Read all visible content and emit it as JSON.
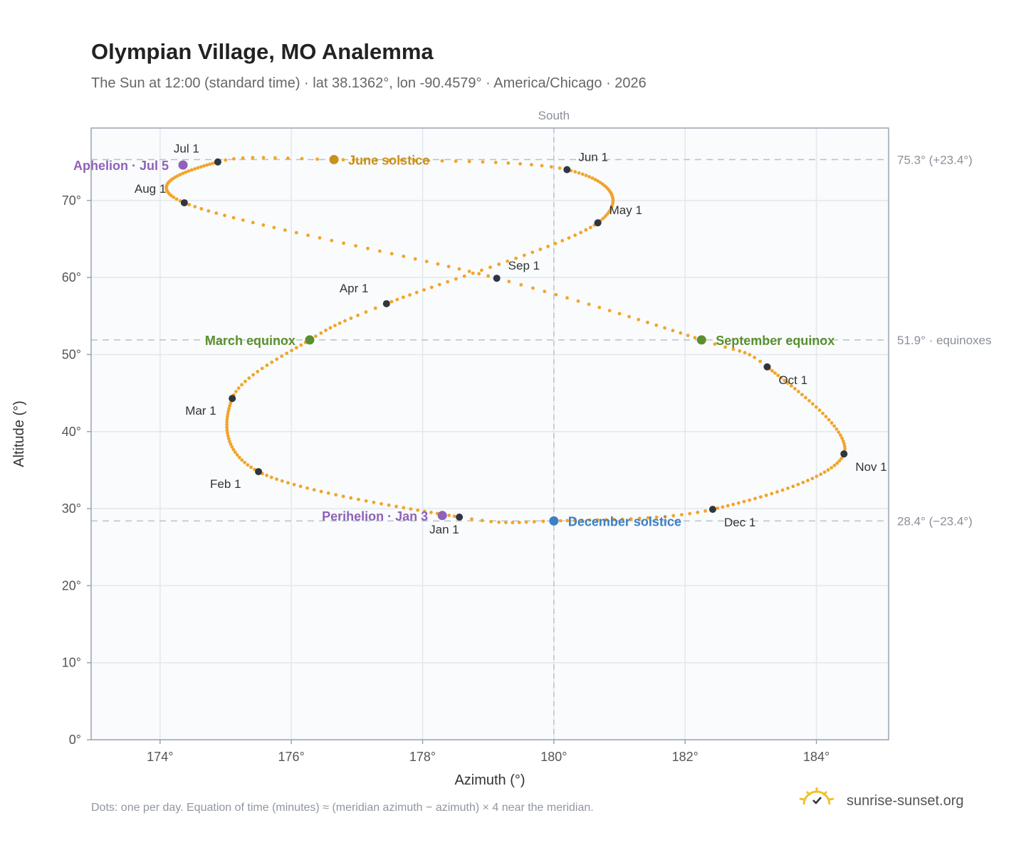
{
  "title": "Olympian Village, MO Analemma",
  "subtitle": "The Sun at 12:00 (standard time) · lat 38.1362°, lon -90.4579° · America/Chicago · 2026",
  "footnote": "Dots: one per day. Equation of time (minutes) ≈ (meridian azimuth − azimuth) × 4 near the meridian.",
  "brand": "sunrise-sunset.org",
  "colors": {
    "path": "#f2a42a",
    "month_marker": "#2f3640",
    "june_solstice": "#c9901a",
    "december_solstice": "#3b7fc4",
    "equinox": "#5b8f2e",
    "apsis": "#8e62b8",
    "reference_line": "#b8c2cc",
    "plot_bg": "#f9fbfc",
    "grid": "#e3e8ed",
    "frame": "#9aa4b0"
  },
  "chart_data": {
    "type": "scatter",
    "xlabel": "Azimuth (°)",
    "ylabel": "Altitude (°)",
    "xlim": [
      172.95,
      185.1
    ],
    "ylim": [
      0,
      79.4
    ],
    "x_ticks": [
      174,
      176,
      178,
      180,
      182,
      184
    ],
    "x_tick_labels": [
      "174°",
      "176°",
      "178°",
      "180°",
      "182°",
      "184°"
    ],
    "y_ticks": [
      0,
      10,
      20,
      30,
      40,
      50,
      60,
      70
    ],
    "y_tick_labels": [
      "0°",
      "10°",
      "20°",
      "30°",
      "40°",
      "50°",
      "60°",
      "70°"
    ],
    "grid": true,
    "meridian": {
      "azimuth": 180,
      "label": "South"
    },
    "reference_lines": [
      {
        "altitude": 75.3,
        "label": "75.3° (+23.4°)"
      },
      {
        "altitude": 51.9,
        "label": "51.9° · equinoxes"
      },
      {
        "altitude": 28.4,
        "label": "28.4° (−23.4°)"
      }
    ],
    "anchor_points": [
      {
        "day": 1,
        "az": 178.56,
        "alt": 28.9
      },
      {
        "day": 32,
        "az": 175.5,
        "alt": 34.8
      },
      {
        "day": 60,
        "az": 175.1,
        "alt": 44.3
      },
      {
        "day": 79,
        "az": 176.28,
        "alt": 51.9
      },
      {
        "day": 91,
        "az": 177.45,
        "alt": 56.6
      },
      {
        "day": 121,
        "az": 180.67,
        "alt": 67.1
      },
      {
        "day": 152,
        "az": 180.2,
        "alt": 74.0
      },
      {
        "day": 172,
        "az": 176.65,
        "alt": 75.3
      },
      {
        "day": 182,
        "az": 174.88,
        "alt": 75.0
      },
      {
        "day": 213,
        "az": 174.37,
        "alt": 69.7
      },
      {
        "day": 244,
        "az": 179.13,
        "alt": 59.9
      },
      {
        "day": 265,
        "az": 182.25,
        "alt": 51.9
      },
      {
        "day": 274,
        "az": 183.25,
        "alt": 48.4
      },
      {
        "day": 305,
        "az": 184.42,
        "alt": 37.1
      },
      {
        "day": 335,
        "az": 182.42,
        "alt": 29.9
      },
      {
        "day": 355,
        "az": 180.0,
        "alt": 28.4
      },
      {
        "day": 366,
        "az": 178.56,
        "alt": 28.9
      }
    ],
    "month_markers": [
      {
        "label": "Jan 1",
        "az": 178.56,
        "alt": 28.9
      },
      {
        "label": "Feb 1",
        "az": 175.5,
        "alt": 34.8
      },
      {
        "label": "Mar 1",
        "az": 175.1,
        "alt": 44.3
      },
      {
        "label": "Apr 1",
        "az": 177.45,
        "alt": 56.6
      },
      {
        "label": "May 1",
        "az": 180.67,
        "alt": 67.1
      },
      {
        "label": "Jun 1",
        "az": 180.2,
        "alt": 74.0
      },
      {
        "label": "Jul 1",
        "az": 174.88,
        "alt": 75.0
      },
      {
        "label": "Aug 1",
        "az": 174.37,
        "alt": 69.7
      },
      {
        "label": "Sep 1",
        "az": 179.13,
        "alt": 59.9
      },
      {
        "label": "Oct 1",
        "az": 183.25,
        "alt": 48.4
      },
      {
        "label": "Nov 1",
        "az": 184.42,
        "alt": 37.1
      },
      {
        "label": "Dec 1",
        "az": 182.42,
        "alt": 29.9
      }
    ],
    "events": [
      {
        "label": "June solstice",
        "az": 176.65,
        "alt": 75.3,
        "color": "#c9901a"
      },
      {
        "label": "December solstice",
        "az": 180.0,
        "alt": 28.4,
        "color": "#3b7fc4"
      },
      {
        "label": "March equinox",
        "az": 176.28,
        "alt": 51.9,
        "color": "#5b8f2e"
      },
      {
        "label": "September equinox",
        "az": 182.25,
        "alt": 51.9,
        "color": "#5b8f2e"
      },
      {
        "label": "Aphelion · Jul 5",
        "az": 174.35,
        "alt": 74.6,
        "color": "#8e62b8"
      },
      {
        "label": "Perihelion · Jan 3",
        "az": 178.3,
        "alt": 29.1,
        "color": "#8e62b8"
      }
    ]
  }
}
